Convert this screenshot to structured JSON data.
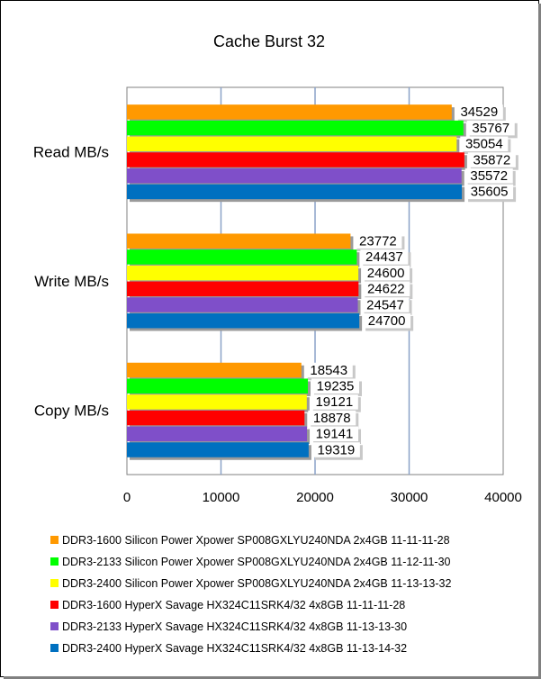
{
  "chart_data": {
    "type": "bar",
    "orientation": "horizontal",
    "title": "Cache Burst 32",
    "categories": [
      "Read MB/s",
      "Write MB/s",
      "Copy MB/s"
    ],
    "xlim": [
      0,
      40000
    ],
    "x_ticks": [
      "0",
      "10000",
      "20000",
      "30000",
      "40000"
    ],
    "grid": "vertical",
    "legend_position": "bottom",
    "series": [
      {
        "name": "DDR3-1600 Silicon Power Xpower SP008GXLYU240NDA 2x4GB 11-11-11-28",
        "color": "#ff9900",
        "values": [
          34529,
          23772,
          18543
        ]
      },
      {
        "name": "DDR3-2133 Silicon Power Xpower SP008GXLYU240NDA 2x4GB 11-12-11-30",
        "color": "#00ff00",
        "values": [
          35767,
          24437,
          19235
        ]
      },
      {
        "name": "DDR3-2400 Silicon Power Xpower SP008GXLYU240NDA 2x4GB 11-13-13-32",
        "color": "#ffff00",
        "values": [
          35054,
          24600,
          19121
        ]
      },
      {
        "name": "DDR3-1600 HyperX Savage HX324C11SRK4/32 4x8GB 11-11-11-28",
        "color": "#ff0000",
        "values": [
          35872,
          24622,
          18878
        ]
      },
      {
        "name": "DDR3-2133 HyperX Savage HX324C11SRK4/32 4x8GB 11-13-13-30",
        "color": "#7f4fc9",
        "values": [
          35572,
          24547,
          19141
        ]
      },
      {
        "name": "DDR3-2400 HyperX Savage HX324C11SRK4/32 4x8GB 11-13-14-32",
        "color": "#0070c0",
        "values": [
          35605,
          24700,
          19319
        ]
      }
    ]
  }
}
